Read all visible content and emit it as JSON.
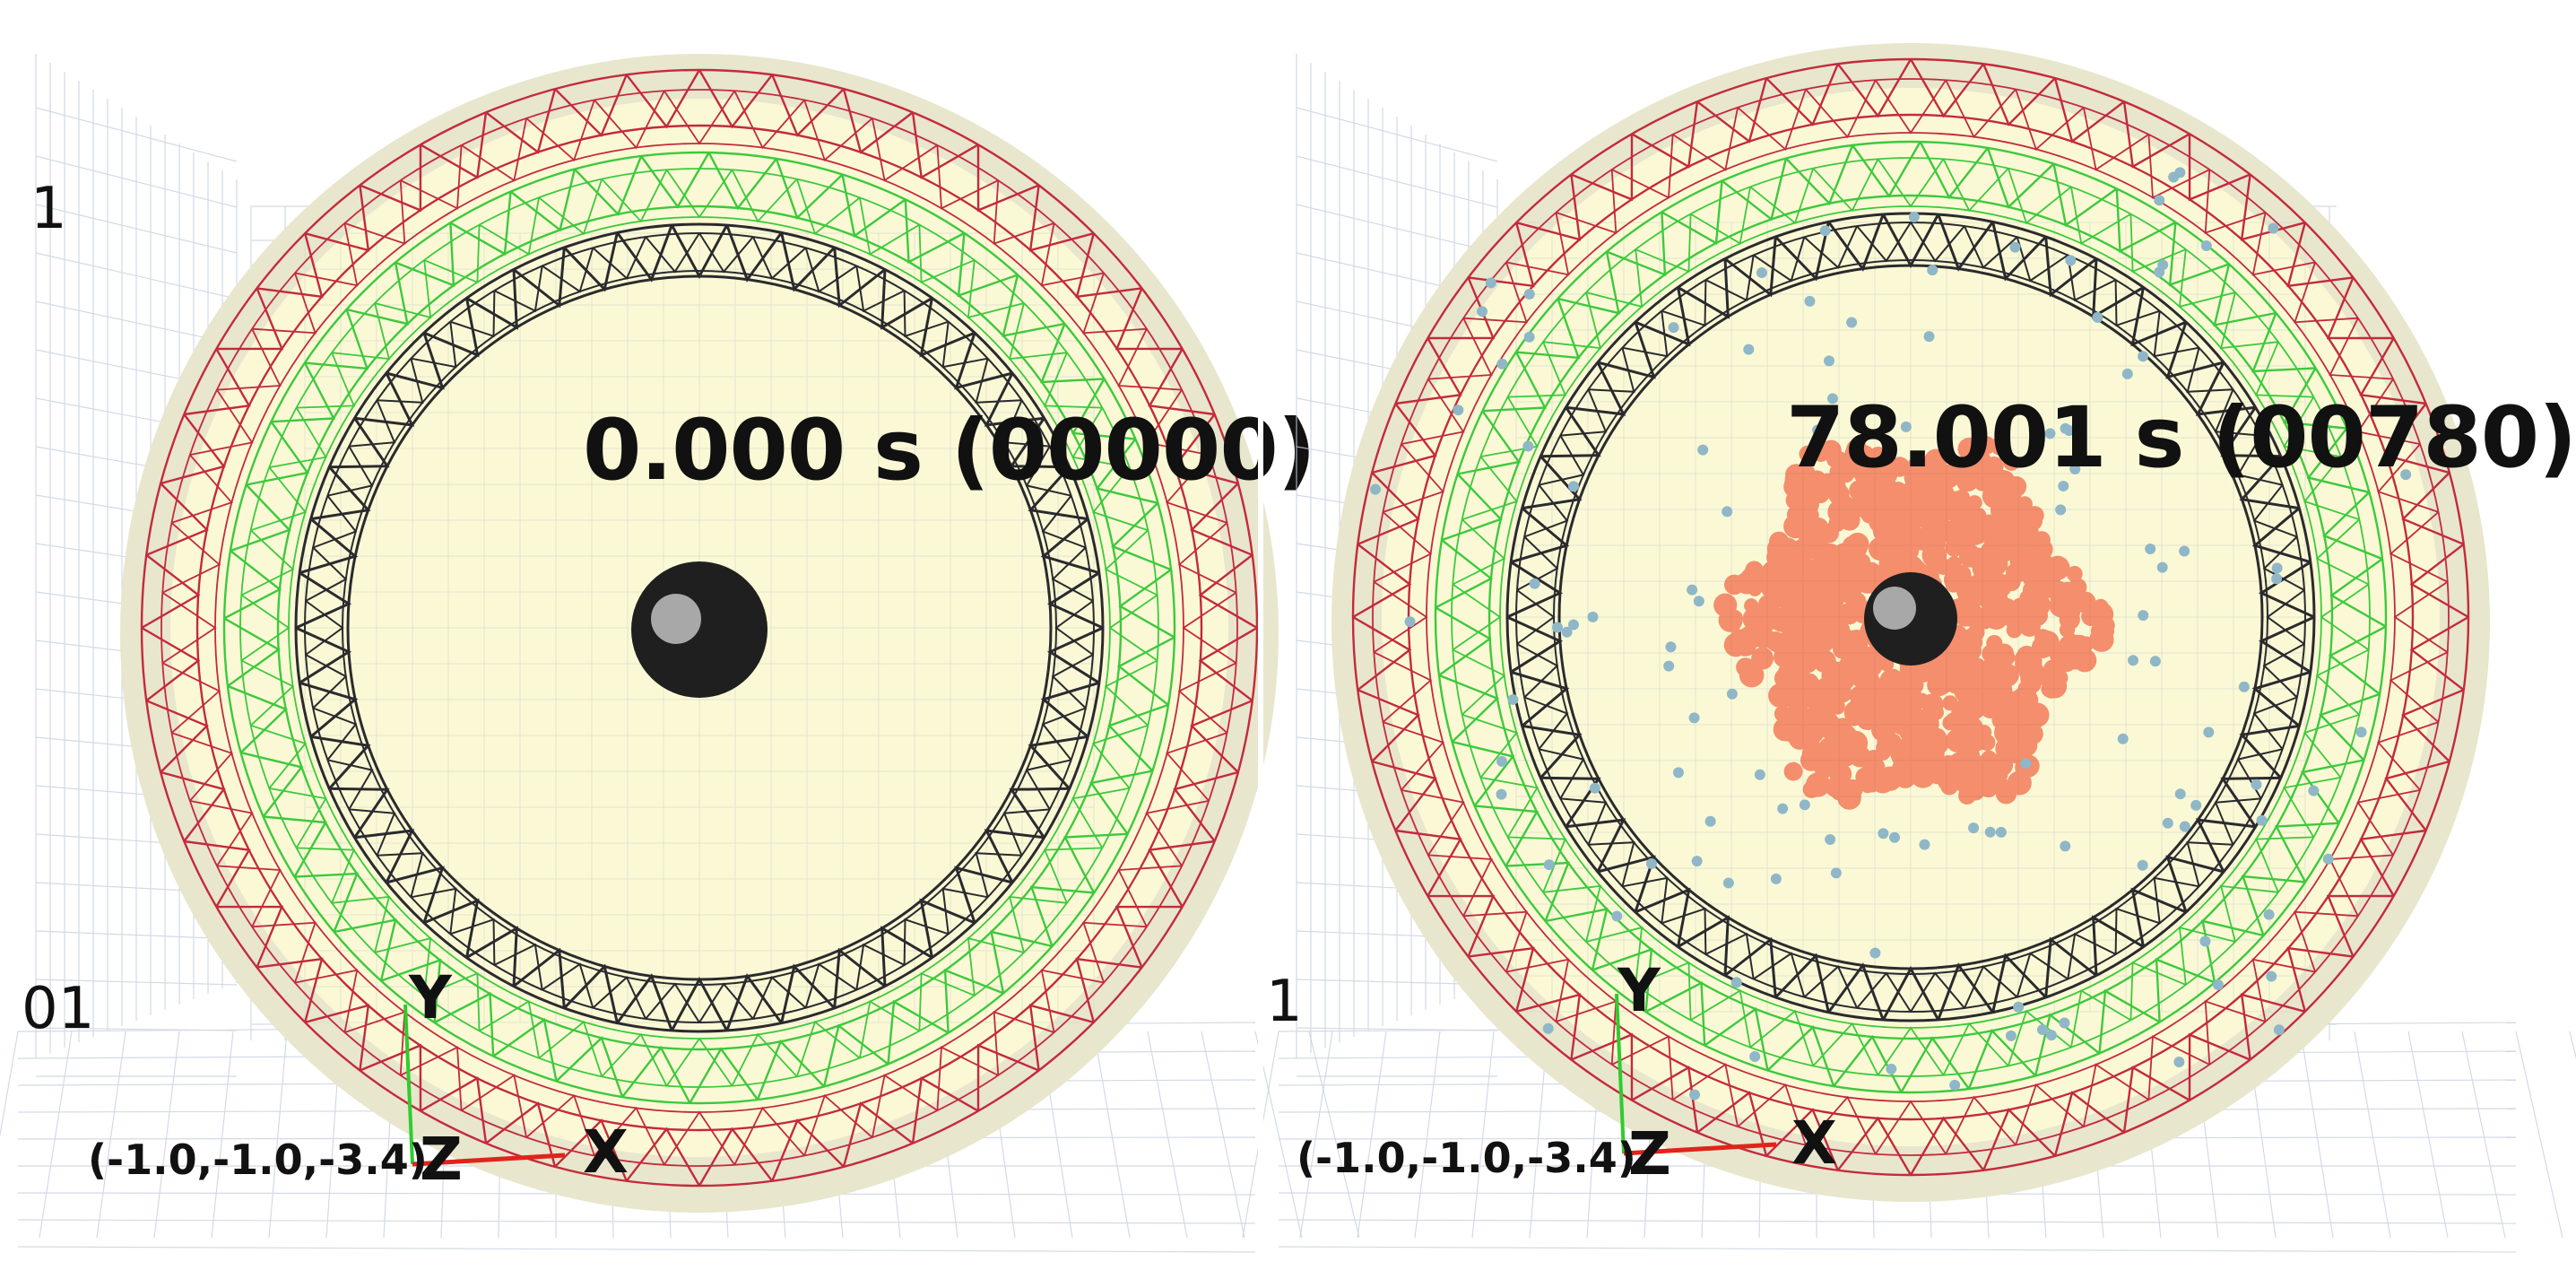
{
  "panels": [
    {
      "time_label": "0.000 s (00000)",
      "axis_labels": {
        "x": "X",
        "y": "Y",
        "z": "Z"
      },
      "origin_label": "(-1.0,-1.0,-3.4)",
      "edge_labels": {
        "top_mark": "1",
        "side_mark": "01"
      },
      "has_particle_cloud": false
    },
    {
      "time_label": "78.001 s (00780)",
      "axis_labels": {
        "x": "X",
        "y": "Y",
        "z": "Z"
      },
      "origin_label": "(-1.0,-1.0,-3.4)",
      "edge_labels": {
        "side_mark": "1"
      },
      "has_particle_cloud": true
    }
  ],
  "colors": {
    "outer_disk": "#e8e6cc",
    "inner_fill": "#fdfbd6",
    "outer_truss": "#c32a3d",
    "middle_truss": "#3dc93d",
    "inner_truss": "#2a2a2e",
    "hub": "#1f1f1f",
    "hub_highlight": "#a8a8a8",
    "particles": "#ef3818",
    "scattered_particles": "#8fb7c8",
    "grid": "#c9d2df",
    "axis_x": "#e0241c",
    "axis_y": "#2ecc2e"
  }
}
